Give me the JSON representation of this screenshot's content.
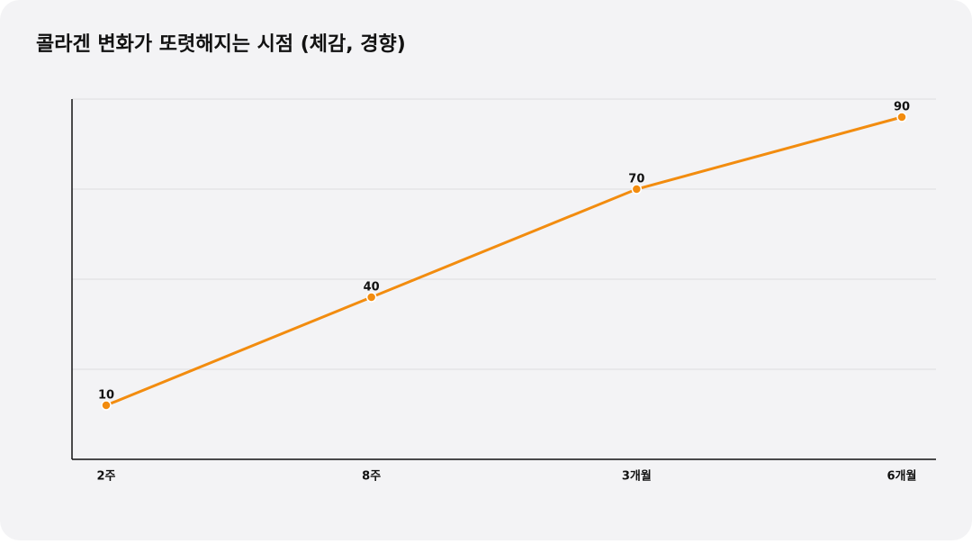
{
  "chart_data": {
    "type": "line",
    "title": "콜라겐 변화가 또렷해지는 시점 (체감, 경향)",
    "categories": [
      "2주",
      "8주",
      "3개월",
      "6개월"
    ],
    "series": [
      {
        "name": "체감",
        "color": "#f28c0f",
        "values": [
          10,
          40,
          70,
          90
        ]
      }
    ],
    "ylim": [
      -5,
      95
    ],
    "yticks": [
      20,
      45,
      70,
      95
    ],
    "grid": true,
    "legend": false
  }
}
